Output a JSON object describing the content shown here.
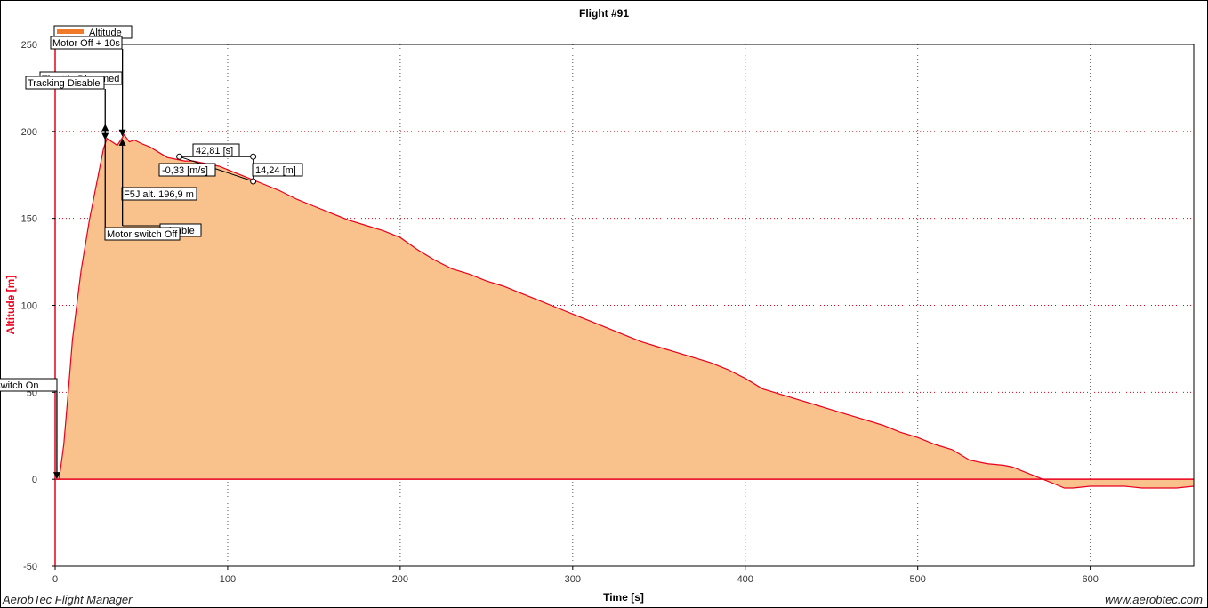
{
  "footer": {
    "left": "AerobTec Flight Manager",
    "right": "www.aerobtec.com"
  },
  "colors": {
    "line": "#e8001c",
    "fill": "#f9c18b",
    "legend_swatch": "#f07a28",
    "axis_label": "#e8001c",
    "grid_x": "#555555",
    "grid_y": "#e8001c"
  },
  "chart_data": {
    "type": "area",
    "title": "Flight #91",
    "xlabel": "Time [s]",
    "ylabel": "Altitude [m]",
    "xlim": [
      0,
      660
    ],
    "ylim": [
      -50,
      250
    ],
    "xticks": [
      0,
      100,
      200,
      300,
      400,
      500,
      600
    ],
    "xtick_labels": [
      "0",
      "100",
      "200",
      "300",
      "400",
      "500",
      "600"
    ],
    "yticks": [
      -50,
      0,
      50,
      100,
      150,
      200,
      250
    ],
    "ytick_labels": [
      "-50",
      "0",
      "50",
      "100",
      "150",
      "200",
      "250"
    ],
    "grid": true,
    "legend": {
      "position": "top-left",
      "entries": [
        "Altitude"
      ]
    },
    "series": [
      {
        "name": "Altitude",
        "x": [
          0,
          1,
          2,
          3,
          5,
          8,
          10,
          15,
          20,
          25,
          28,
          30,
          33,
          36,
          40,
          43,
          46,
          50,
          55,
          60,
          65,
          70,
          75,
          80,
          85,
          90,
          95,
          100,
          110,
          115,
          120,
          130,
          140,
          150,
          160,
          170,
          180,
          190,
          200,
          210,
          220,
          230,
          240,
          250,
          260,
          270,
          280,
          290,
          300,
          310,
          320,
          330,
          340,
          350,
          360,
          370,
          380,
          390,
          400,
          410,
          420,
          430,
          440,
          450,
          460,
          470,
          480,
          490,
          500,
          510,
          520,
          530,
          540,
          550,
          555,
          560,
          570,
          575,
          580,
          585,
          590,
          600,
          610,
          620,
          630,
          640,
          650,
          660
        ],
        "values": [
          0,
          0,
          0,
          5,
          20,
          55,
          80,
          120,
          150,
          175,
          190,
          196,
          194,
          192,
          198,
          194,
          195,
          193,
          191,
          188,
          185,
          184,
          183,
          183,
          182,
          181,
          180,
          178,
          174,
          172,
          170,
          166,
          161,
          157,
          153,
          149,
          146,
          143,
          139,
          132,
          126,
          121,
          118,
          114,
          111,
          107,
          103,
          99,
          95,
          91,
          87,
          83,
          79,
          76,
          73,
          70,
          67,
          63,
          58,
          52,
          49,
          46,
          43,
          40,
          37,
          34,
          31,
          27,
          24,
          20,
          17,
          11,
          9,
          8,
          7,
          5,
          1,
          -1,
          -3,
          -5,
          -5,
          -4,
          -4,
          -4,
          -5,
          -5,
          -5,
          -4
        ]
      }
    ],
    "annotations": [
      {
        "label": "Motor switch On",
        "t": 1,
        "alt": 0
      },
      {
        "label": "Tracking Disable",
        "t": 29,
        "alt": 196
      },
      {
        "label": "Throttle Disarmed",
        "t": 39,
        "alt": 197
      },
      {
        "label": "Motor Off + 10s",
        "t": 39,
        "alt": 198
      },
      {
        "label": "F5J alt. 196,9 m",
        "t": 39,
        "alt": 196.9
      },
      {
        "label": "Motor switch Off",
        "t": 29,
        "alt": 190
      },
      {
        "label": "Disable",
        "t": 70,
        "alt": 143
      }
    ],
    "measurement": {
      "start_t": 72,
      "start_alt": 185.5,
      "end_t": 114.8,
      "end_alt": 171.3,
      "duration_label": "42,81 [s]",
      "rate_label": "-0,33 [m/s]",
      "delta_label": "14,24 [m]"
    }
  }
}
